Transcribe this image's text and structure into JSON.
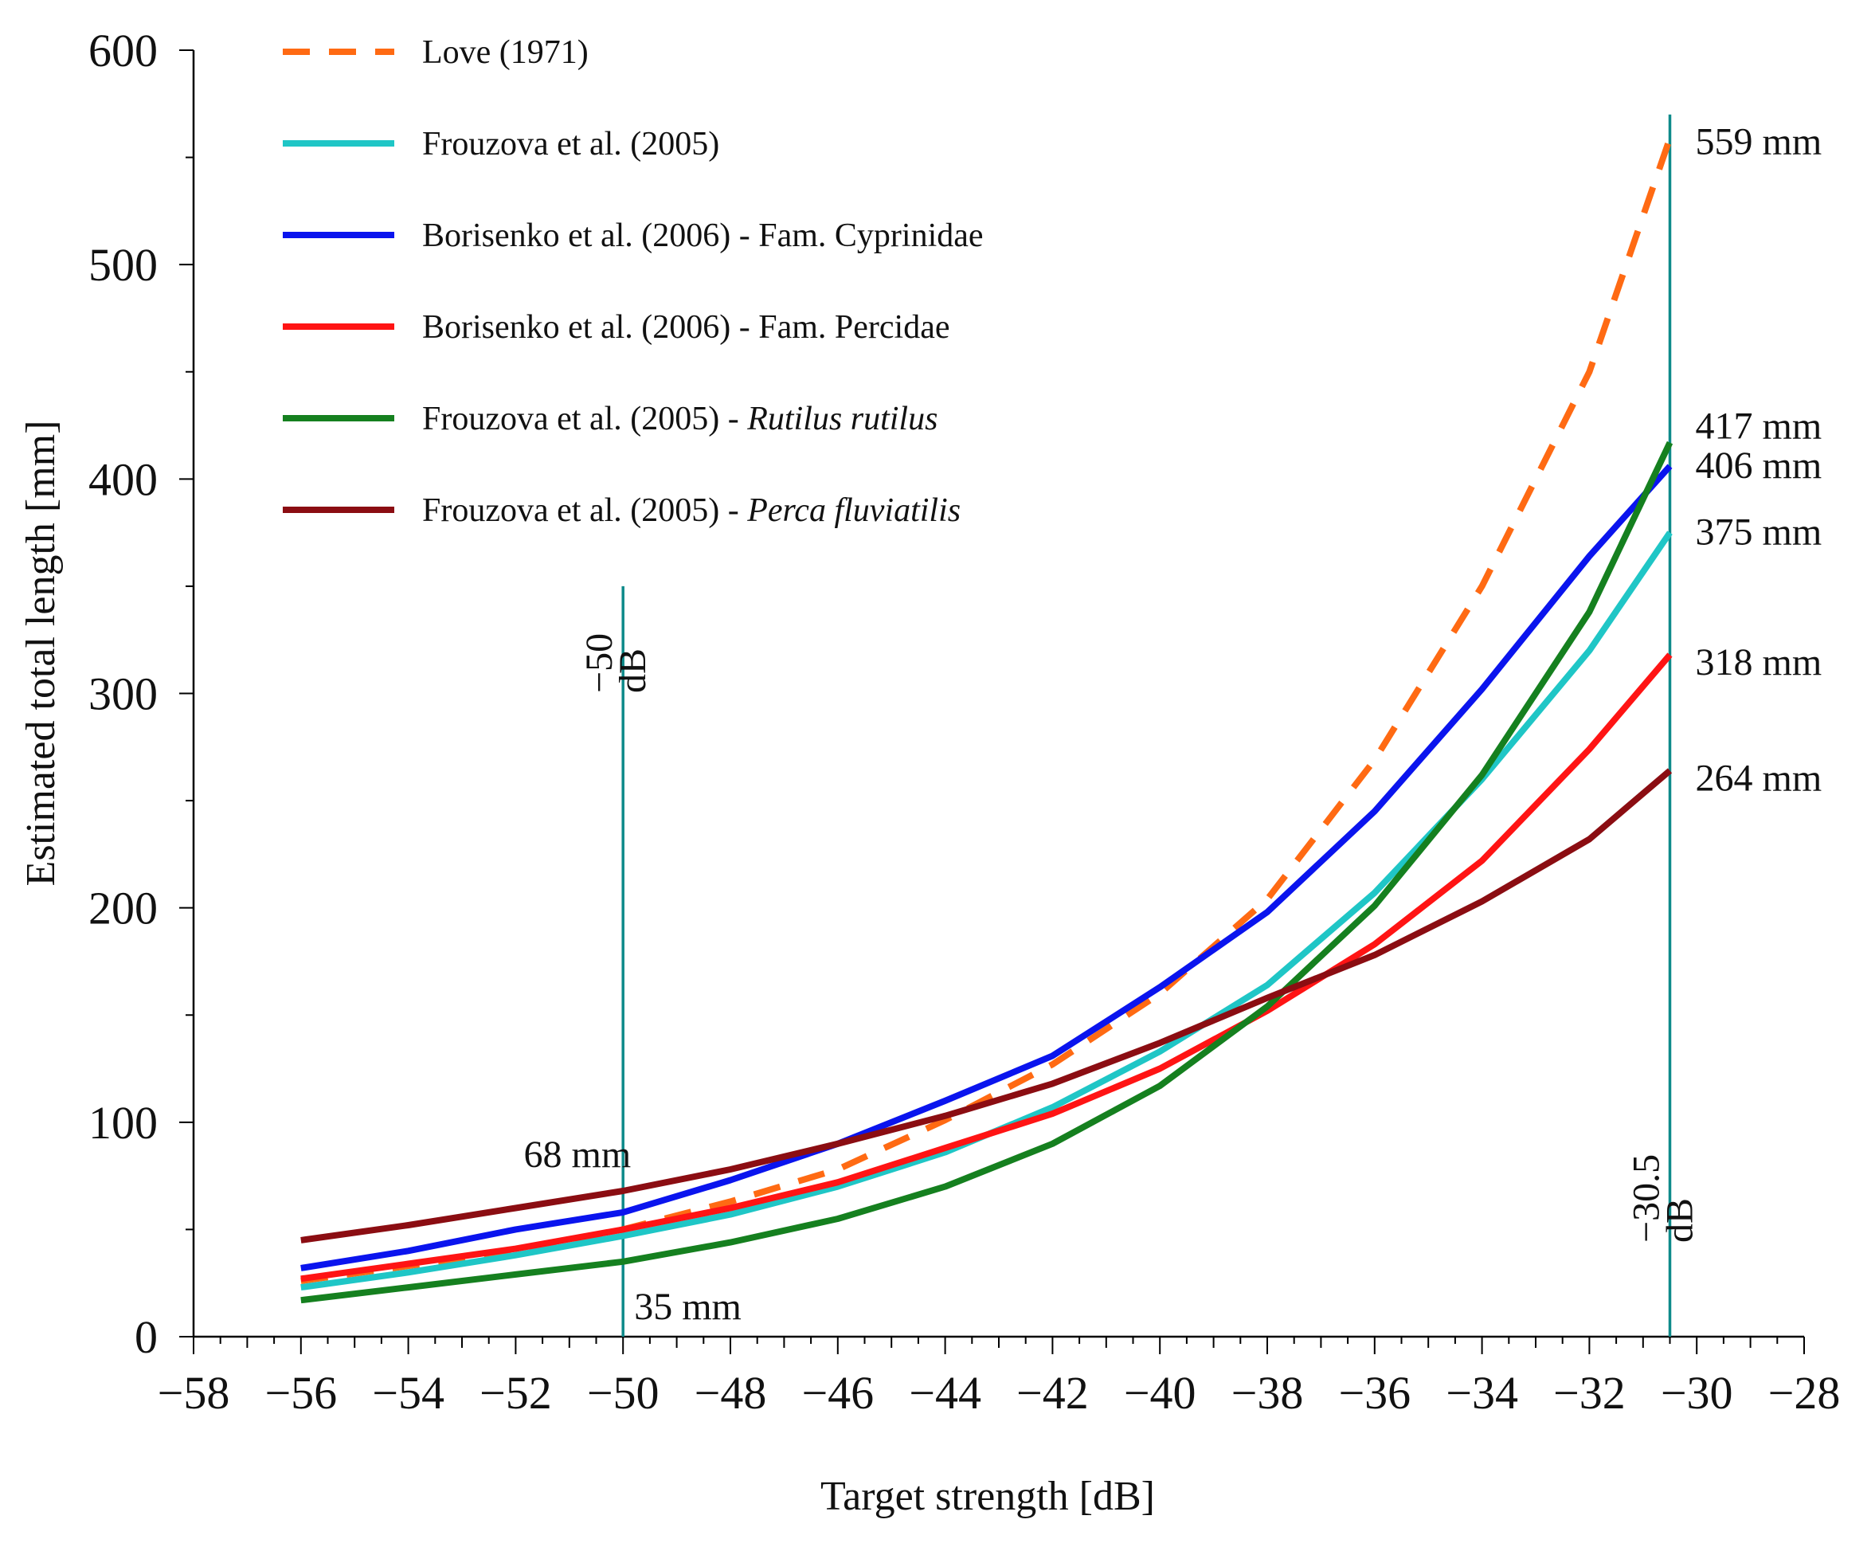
{
  "chart_data": {
    "type": "line",
    "xlabel": "Target strength [dB]",
    "ylabel": "Estimated total length [mm]",
    "xlim": [
      -58,
      -28
    ],
    "ylim": [
      0,
      600
    ],
    "x_ticks": [
      -58,
      -56,
      -54,
      -52,
      -50,
      -48,
      -46,
      -44,
      -42,
      -40,
      -38,
      -36,
      -34,
      -32,
      -30,
      -28
    ],
    "x_tick_labels": [
      "−58",
      "−56",
      "−54",
      "−52",
      "−50",
      "−48",
      "−46",
      "−44",
      "−42",
      "−40",
      "−38",
      "−36",
      "−34",
      "−32",
      "−30",
      "−28"
    ],
    "y_ticks": [
      0,
      100,
      200,
      300,
      400,
      500,
      600
    ],
    "y_tick_labels": [
      "0",
      "100",
      "200",
      "300",
      "400",
      "500",
      "600"
    ],
    "legend_position": "top-left",
    "series": [
      {
        "name": "Love (1971)",
        "name_main": "Love (1971)",
        "name_italic": "",
        "color": "#FF6A13",
        "dashed": true,
        "x": [
          -56,
          -54,
          -52,
          -50,
          -48,
          -46,
          -44,
          -42,
          -40,
          -38,
          -36,
          -34,
          -32,
          -30.5
        ],
        "y": [
          26,
          33,
          40,
          50,
          63,
          78,
          101,
          127,
          160,
          204,
          269,
          350,
          450,
          559
        ]
      },
      {
        "name": "Frouzova et al. (2005)",
        "name_main": "Frouzova et al. (2005)",
        "name_italic": "",
        "color": "#1FC6C6",
        "dashed": false,
        "x": [
          -56,
          -54,
          -52,
          -50,
          -48,
          -46,
          -44,
          -42,
          -40,
          -38,
          -36,
          -34,
          -32,
          -30.5
        ],
        "y": [
          23,
          30,
          38,
          47,
          57,
          70,
          86,
          107,
          133,
          164,
          207,
          260,
          320,
          375
        ]
      },
      {
        "name": "Borisenko et al. (2006) - Fam. Cyprinidae",
        "name_main": "Borisenko et al. (2006) - Fam. Cyprinidae",
        "name_italic": "",
        "color": "#0A14EE",
        "dashed": false,
        "x": [
          -56,
          -54,
          -52,
          -50,
          -48,
          -46,
          -44,
          -42,
          -40,
          -38,
          -36,
          -34,
          -32,
          -30.5
        ],
        "y": [
          32,
          40,
          50,
          58,
          73,
          90,
          110,
          131,
          163,
          198,
          245,
          302,
          364,
          406
        ]
      },
      {
        "name": "Borisenko et al. (2006) - Fam. Percidae",
        "name_main": "Borisenko et al. (2006) - Fam. Percidae",
        "name_italic": "",
        "color": "#FF1414",
        "dashed": false,
        "x": [
          -56,
          -54,
          -52,
          -50,
          -48,
          -46,
          -44,
          -42,
          -40,
          -38,
          -36,
          -34,
          -32,
          -30.5
        ],
        "y": [
          27,
          34,
          41,
          50,
          60,
          72,
          88,
          104,
          125,
          152,
          183,
          222,
          274,
          318
        ]
      },
      {
        "name": "Frouzova et al. (2005) - Rutilus rutilus",
        "name_main": "Frouzova et al. (2005) - ",
        "name_italic": "Rutilus rutilus",
        "color": "#15801F",
        "dashed": false,
        "x": [
          -56,
          -54,
          -52,
          -50,
          -48,
          -46,
          -44,
          -42,
          -40,
          -38,
          -36,
          -34,
          -32,
          -30.5
        ],
        "y": [
          17,
          23,
          29,
          35,
          44,
          55,
          70,
          90,
          117,
          154,
          201,
          262,
          338,
          417
        ]
      },
      {
        "name": "Frouzova et al. (2005) - Perca fluviatilis",
        "name_main": "Frouzova et al. (2005) - ",
        "name_italic": "Perca fluviatilis",
        "color": "#8B0D12",
        "dashed": false,
        "x": [
          -56,
          -54,
          -52,
          -50,
          -48,
          -46,
          -44,
          -42,
          -40,
          -38,
          -36,
          -34,
          -32,
          -30.5
        ],
        "y": [
          45,
          52,
          60,
          68,
          78,
          90,
          103,
          118,
          137,
          158,
          178,
          203,
          232,
          264
        ]
      }
    ],
    "reference_lines": [
      {
        "x": -50,
        "label_value": "−50",
        "label_unit": "dB",
        "y_top": 350
      },
      {
        "x": -30.5,
        "label_value": "−30.5",
        "label_unit": "dB",
        "y_top": 570
      }
    ],
    "annotations": [
      {
        "text": "559 mm",
        "x": -30.5,
        "y": 559
      },
      {
        "text": "417 mm",
        "x": -30.5,
        "y": 417
      },
      {
        "text": "406 mm",
        "x": -30.5,
        "y": 406
      },
      {
        "text": "375 mm",
        "x": -30.5,
        "y": 375
      },
      {
        "text": "318 mm",
        "x": -30.5,
        "y": 318
      },
      {
        "text": "264 mm",
        "x": -30.5,
        "y": 264
      },
      {
        "text": "68 mm",
        "x": -50,
        "y": 68
      },
      {
        "text": "35 mm",
        "x": -50,
        "y": 35
      }
    ],
    "colors": {
      "reference_line": "#0E8A8A",
      "axis": "#000000"
    }
  }
}
